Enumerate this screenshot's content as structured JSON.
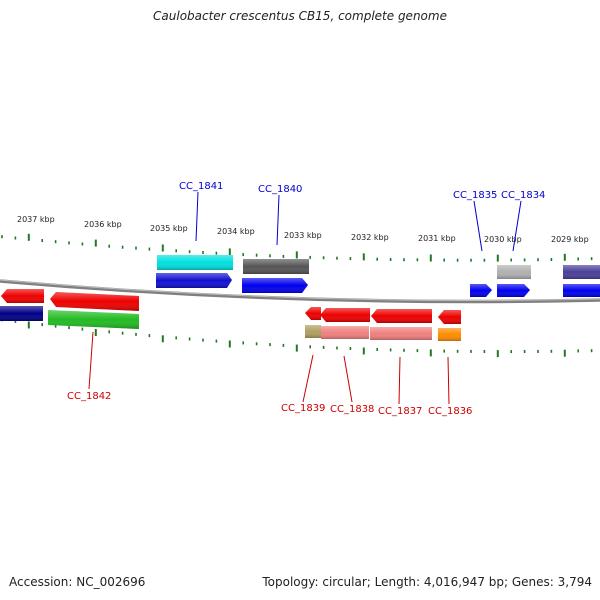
{
  "title": "Caulobacter crescentus CB15, complete genome",
  "accession": "Accession: NC_002696",
  "topology": "Topology: circular; Length: 4,016,947 bp; Genes: 3,794",
  "scale_labels": [
    "2037 kbp",
    "2036 kbp",
    "2035 kbp",
    "2034 kbp",
    "2033 kbp",
    "2032 kbp",
    "2031 kbp",
    "2030 kbp",
    "2029 kbp"
  ],
  "gene_labels_forward": [
    "CC_1841",
    "CC_1840",
    "CC_1835",
    "CC_1834"
  ],
  "gene_labels_reverse": [
    "CC_1842",
    "CC_1839",
    "CC_1838",
    "CC_1837",
    "CC_1836"
  ],
  "colors": {
    "forward_label": "#0000cc",
    "reverse_label": "#cc0000",
    "backbone": "#808080",
    "tick": "#227722"
  }
}
